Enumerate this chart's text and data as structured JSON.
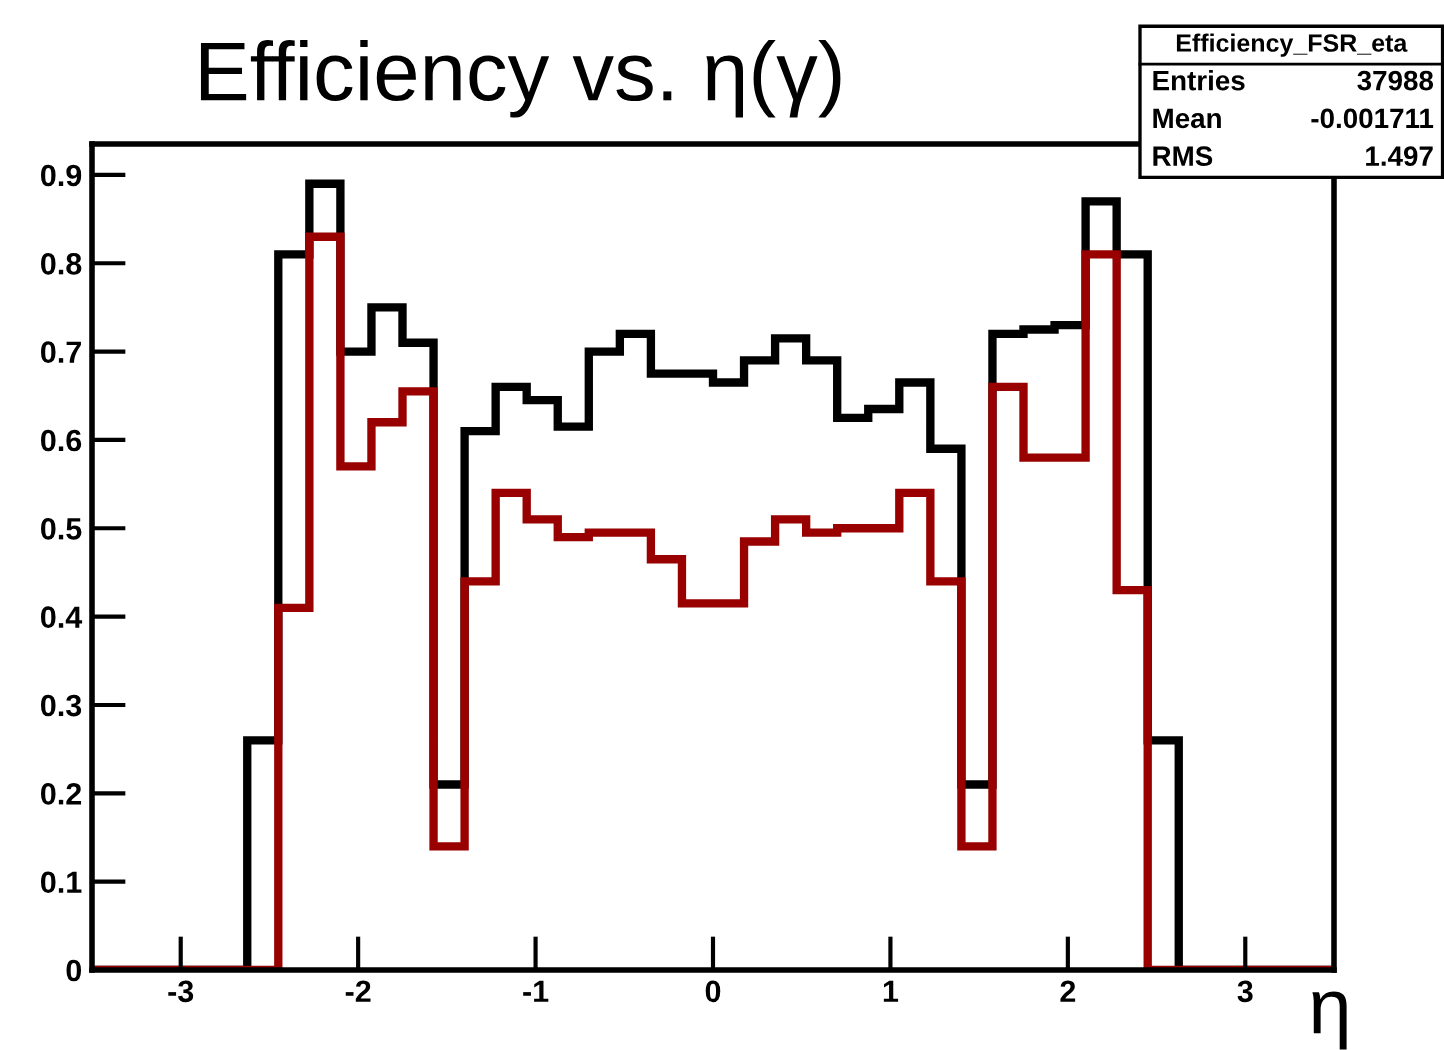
{
  "chart_data": {
    "type": "histogram",
    "title": "Efficiency vs. η(γ)",
    "xlabel": "η",
    "bins": [
      -3.5,
      -3.325,
      -3.15,
      -2.975,
      -2.8,
      -2.625,
      -2.45,
      -2.275,
      -2.1,
      -1.925,
      -1.75,
      -1.575,
      -1.4,
      -1.225,
      -1.05,
      -0.875,
      -0.7,
      -0.525,
      -0.35,
      -0.175,
      0,
      0.175,
      0.35,
      0.525,
      0.7,
      0.875,
      1.05,
      1.225,
      1.4,
      1.575,
      1.75,
      1.925,
      2.1,
      2.275,
      2.45,
      2.625,
      2.8,
      2.975,
      3.15,
      3.325,
      3.5
    ],
    "series": [
      {
        "color": "#000000",
        "values": [
          0,
          0,
          0,
          0,
          0,
          0.26,
          0.81,
          0.89,
          0.7,
          0.75,
          0.71,
          0.21,
          0.61,
          0.66,
          0.645,
          0.615,
          0.7,
          0.72,
          0.675,
          0.675,
          0.665,
          0.69,
          0.715,
          0.69,
          0.625,
          0.635,
          0.665,
          0.59,
          0.21,
          0.72,
          0.725,
          0.73,
          0.87,
          0.81,
          0.26,
          0,
          0,
          0,
          0,
          0
        ]
      },
      {
        "color": "#990000",
        "values": [
          0,
          0,
          0,
          0,
          0,
          0,
          0.41,
          0.83,
          0.57,
          0.62,
          0.655,
          0.14,
          0.44,
          0.54,
          0.51,
          0.49,
          0.495,
          0.495,
          0.465,
          0.415,
          0.415,
          0.485,
          0.51,
          0.495,
          0.5,
          0.5,
          0.54,
          0.44,
          0.14,
          0.66,
          0.58,
          0.58,
          0.81,
          0.43,
          0,
          0,
          0,
          0,
          0,
          0
        ]
      }
    ],
    "xlim": [
      -3.5,
      3.5
    ],
    "ylim": [
      0,
      0.935
    ],
    "xticks": [
      -3,
      -2,
      -1,
      0,
      1,
      2,
      3
    ],
    "yticks": [
      0,
      0.1,
      0.2,
      0.3,
      0.4,
      0.5,
      0.6,
      0.7,
      0.8,
      0.9
    ],
    "annotations": [
      "Efficiency_FSR_eta",
      "Entries 37988",
      "Mean -0.001711",
      "RMS 1.497"
    ]
  }
}
